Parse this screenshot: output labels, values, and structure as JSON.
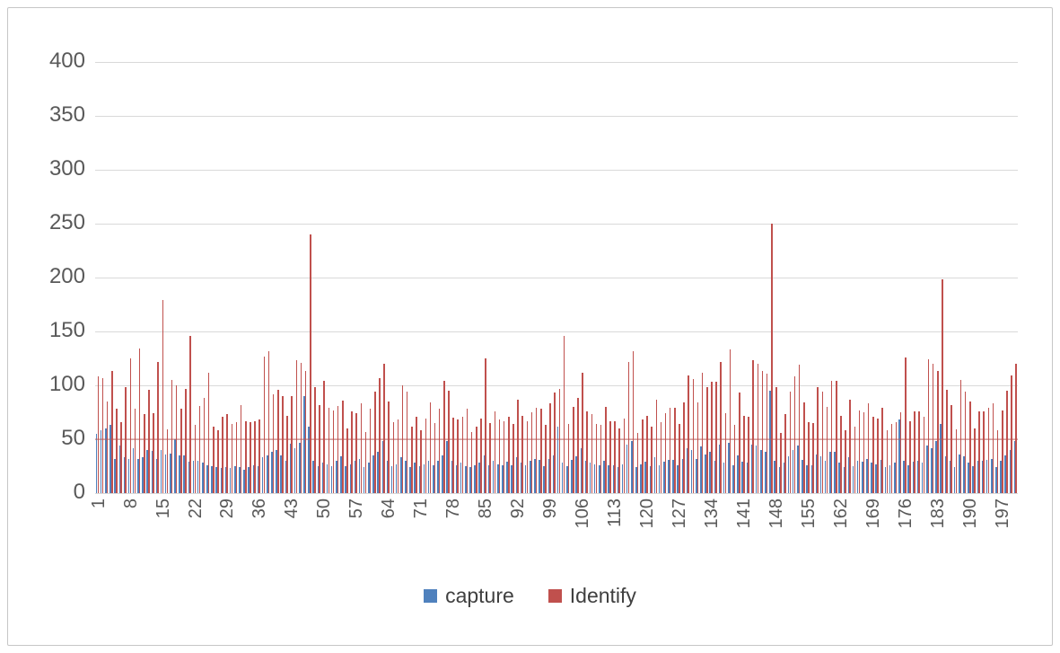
{
  "colors": {
    "capture": "#4F81BD",
    "identify": "#C0504D",
    "gridline": "#D9D9D9",
    "axis_text": "#595959",
    "legend_text": "#404040",
    "frame_border": "#C6C6C6",
    "overlay_line_50": "#C0504D"
  },
  "legend": {
    "capture_label": "capture",
    "identify_label": "Identify"
  },
  "chart_data": {
    "type": "bar",
    "title": "",
    "xlabel": "",
    "ylabel": "",
    "ylim": [
      0,
      400
    ],
    "ytick_step": 50,
    "ytick_labels": [
      "0",
      "50",
      "100",
      "150",
      "200",
      "250",
      "300",
      "350",
      "400"
    ],
    "grid": "horizontal",
    "legend_position": "bottom",
    "category_start": 1,
    "category_count": 200,
    "x_tick_step": 7,
    "x_tick_labels": [
      "1",
      "8",
      "15",
      "22",
      "29",
      "36",
      "43",
      "50",
      "57",
      "64",
      "71",
      "78",
      "85",
      "92",
      "99",
      "106",
      "113",
      "120",
      "127",
      "134",
      "141",
      "148",
      "155",
      "162",
      "169",
      "176",
      "183",
      "190",
      "197"
    ],
    "series": [
      {
        "name": "capture",
        "color": "#4F81BD",
        "values": [
          55,
          58,
          60,
          63,
          32,
          44,
          33,
          32,
          42,
          32,
          33,
          40,
          39,
          32,
          40,
          36,
          37,
          50,
          35,
          35,
          29,
          30,
          30,
          28,
          26,
          25,
          24,
          23,
          24,
          23,
          25,
          24,
          22,
          24,
          26,
          25,
          33,
          35,
          38,
          40,
          35,
          30,
          46,
          42,
          47,
          90,
          62,
          30,
          25,
          28,
          27,
          25,
          30,
          34,
          25,
          27,
          30,
          32,
          24,
          28,
          35,
          38,
          48,
          30,
          25,
          27,
          33,
          30,
          24,
          28,
          25,
          27,
          30,
          26,
          30,
          35,
          48,
          30,
          26,
          28,
          25,
          24,
          26,
          28,
          35,
          26,
          30,
          27,
          26,
          29,
          26,
          33,
          28,
          26,
          30,
          32,
          31,
          25,
          32,
          35,
          62,
          28,
          25,
          31,
          34,
          42,
          30,
          28,
          27,
          26,
          30,
          26,
          26,
          24,
          27,
          45,
          48,
          24,
          27,
          29,
          25,
          33,
          26,
          29,
          31,
          31,
          26,
          32,
          42,
          40,
          32,
          43,
          36,
          38,
          30,
          45,
          28,
          47,
          26,
          35,
          29,
          28,
          45,
          44,
          40,
          38,
          95,
          30,
          24,
          28,
          34,
          40,
          44,
          31,
          26,
          26,
          36,
          34,
          30,
          38,
          38,
          28,
          24,
          33,
          25,
          30,
          29,
          32,
          28,
          27,
          31,
          24,
          26,
          28,
          68,
          30,
          26,
          29,
          30,
          28,
          44,
          42,
          48,
          64,
          34,
          30,
          24,
          36,
          34,
          28,
          25,
          30,
          30,
          31,
          32,
          24,
          30,
          35,
          40,
          48
        ]
      },
      {
        "name": "Identify",
        "color": "#C0504D",
        "values": [
          108,
          107,
          85,
          113,
          78,
          66,
          98,
          125,
          78,
          134,
          73,
          96,
          74,
          122,
          179,
          59,
          105,
          100,
          78,
          97,
          146,
          63,
          81,
          88,
          112,
          62,
          58,
          71,
          73,
          64,
          66,
          82,
          67,
          66,
          67,
          68,
          127,
          132,
          92,
          96,
          90,
          72,
          90,
          123,
          121,
          113,
          240,
          98,
          82,
          104,
          79,
          77,
          81,
          86,
          60,
          76,
          74,
          83,
          57,
          78,
          94,
          107,
          120,
          85,
          66,
          68,
          100,
          94,
          62,
          71,
          58,
          69,
          84,
          65,
          78,
          104,
          95,
          70,
          68,
          71,
          78,
          57,
          62,
          69,
          125,
          65,
          76,
          68,
          67,
          71,
          64,
          87,
          72,
          67,
          75,
          79,
          78,
          63,
          83,
          93,
          97,
          146,
          64,
          80,
          88,
          112,
          76,
          73,
          64,
          63,
          80,
          67,
          67,
          60,
          69,
          122,
          132,
          56,
          68,
          72,
          62,
          87,
          66,
          74,
          79,
          79,
          64,
          84,
          109,
          106,
          84,
          112,
          98,
          103,
          103,
          122,
          74,
          133,
          63,
          93,
          72,
          71,
          123,
          120,
          113,
          111,
          250,
          98,
          56,
          73,
          94,
          108,
          119,
          84,
          66,
          65,
          98,
          94,
          80,
          104,
          104,
          72,
          58,
          87,
          62,
          77,
          75,
          83,
          71,
          69,
          79,
          58,
          64,
          66,
          75,
          126,
          67,
          76,
          76,
          71,
          124,
          120,
          113,
          198,
          96,
          82,
          59,
          105,
          94,
          85,
          60,
          76,
          76,
          79,
          83,
          58,
          77,
          95,
          109,
          120
        ]
      }
    ]
  }
}
